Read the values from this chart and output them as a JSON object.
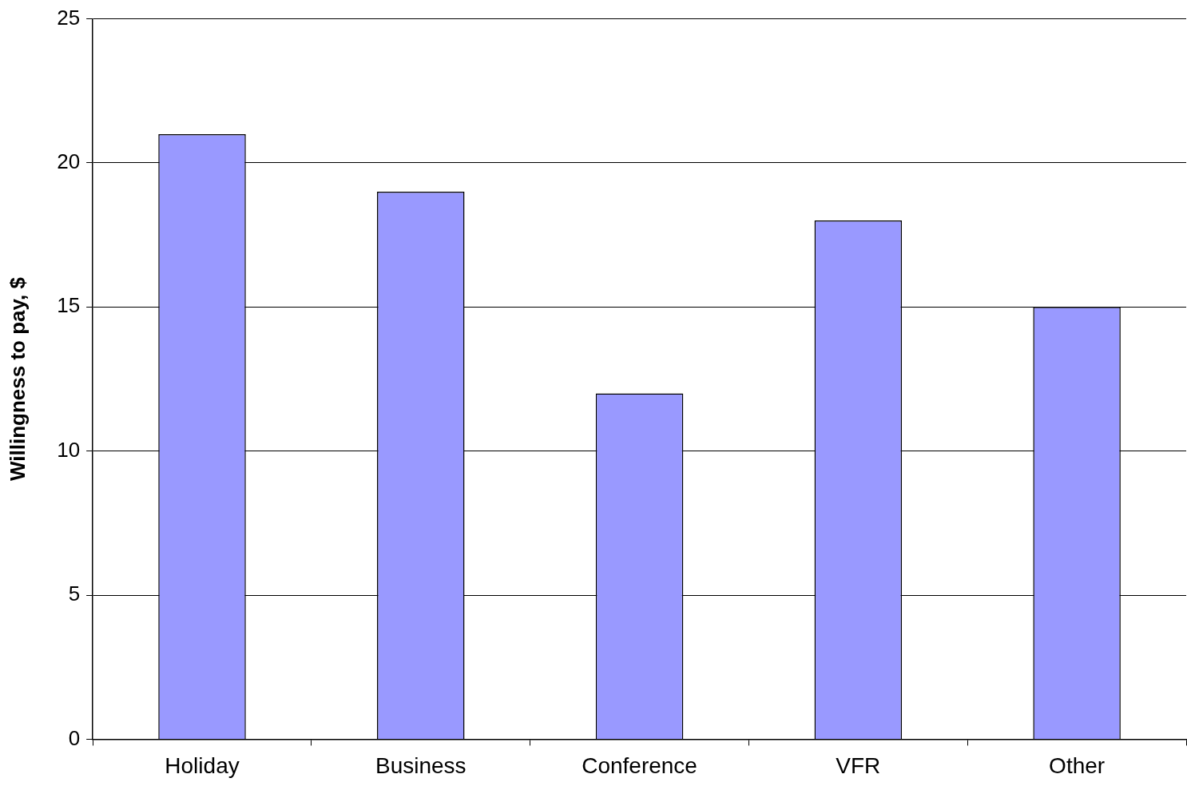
{
  "chart_data": {
    "type": "bar",
    "ylabel": "Willingness to pay, $",
    "categories": [
      "Holiday",
      "Business",
      "Conference",
      "VFR",
      "Other"
    ],
    "values": [
      21,
      19,
      12,
      18,
      15
    ],
    "color": "#9999ff",
    "ylim": [
      0,
      25
    ],
    "yticks": [
      0,
      5,
      10,
      15,
      20,
      25
    ],
    "grid": "y",
    "legend": false
  }
}
